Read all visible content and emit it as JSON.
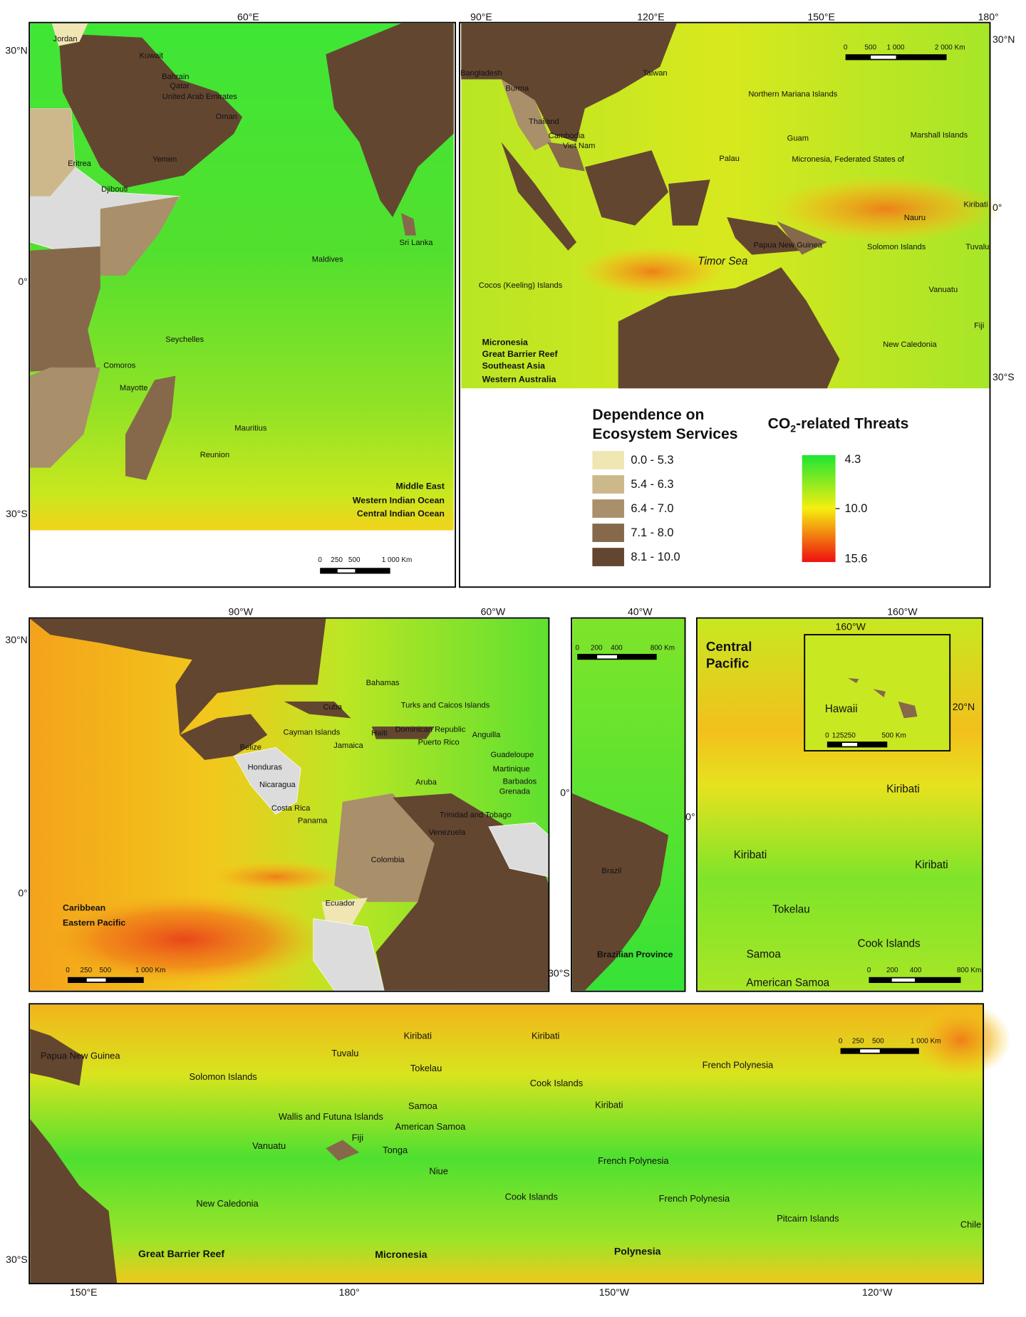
{
  "panels": [
    {
      "axis_labels": [
        "60°E",
        "30°N",
        "0°",
        "30°S"
      ],
      "labels": [
        "Jordan",
        "Kuwait",
        "Bahrain",
        "Qatar",
        "United Arab Emirates",
        "Oman",
        "Eritrea",
        "Yemen",
        "Djibouti",
        "Sri Lanka",
        "Maldives",
        "Seychelles",
        "Comoros",
        "Mayotte",
        "Mauritius",
        "Reunion"
      ],
      "region_labels": [
        "Middle East",
        "Western Indian Ocean",
        "Central Indian Ocean"
      ],
      "scale_bar": [
        "0",
        "250",
        "500",
        "1 000 Km"
      ]
    },
    {
      "axis_labels": [
        "90°E",
        "120°E",
        "150°E",
        "180°",
        "30°N",
        "0°",
        "30°S"
      ],
      "labels": [
        "Bangladesh",
        "Burma",
        "Taiwan",
        "Northern Mariana Islands",
        "Thailand",
        "Cambodia",
        "Viet Nam",
        "Guam",
        "Marshall Islands",
        "Palau",
        "Micronesia, Federated States of",
        "Kiribati",
        "Nauru",
        "Papua New Guinea",
        "Solomon Islands",
        "Tuvalu",
        "Timor Sea",
        "Cocos (Keeling) Islands",
        "Vanuatu",
        "Fiji",
        "New Caledonia"
      ],
      "region_labels": [
        "Micronesia",
        "Great Barrier Reef",
        "Southeast Asia",
        "Western Australia"
      ],
      "scale_bar": [
        "0",
        "500",
        "1 000",
        "2 000 Km"
      ]
    },
    {
      "axis_labels": [
        "90°W",
        "60°W",
        "30°N",
        "0°"
      ],
      "labels": [
        "Bahamas",
        "Turks and Caicos Islands",
        "Cuba",
        "Cayman Islands",
        "Haiti",
        "Dominican Republic",
        "Anguilla",
        "Puerto Rico",
        "Jamaica",
        "Belize",
        "Guadeloupe",
        "Martinique",
        "Honduras",
        "Barbados",
        "Grenada",
        "Nicaragua",
        "Aruba",
        "Costa Rica",
        "Trinidad and Tobago",
        "Panama",
        "Venezuela",
        "Colombia",
        "Ecuador"
      ],
      "region_labels": [
        "Caribbean",
        "Eastern Pacific"
      ],
      "scale_bar": [
        "0",
        "250",
        "500",
        "1 000 Km"
      ]
    },
    {
      "axis_labels": [
        "40°W",
        "0°",
        "30°S"
      ],
      "labels": [
        "Brazil"
      ],
      "region_labels": [
        "Brazilian Province"
      ],
      "scale_bar": [
        "0",
        "200",
        "400",
        "800 Km"
      ]
    },
    {
      "axis_labels": [
        "160°W",
        "0°"
      ],
      "labels": [
        "Kiribati",
        "Kiribati",
        "Kiribati",
        "Tokelau",
        "Cook Islands",
        "Samoa",
        "American Samoa"
      ],
      "region_labels": [
        "Central",
        "Pacific"
      ],
      "scale_bar": [
        "0",
        "200",
        "400",
        "800 Km"
      ]
    },
    {
      "axis_labels": [
        "160°W",
        "20°N"
      ],
      "labels": [
        "Hawaii"
      ],
      "region_labels": [],
      "scale_bar": [
        "0",
        "125",
        "250",
        "500 Km"
      ]
    },
    {
      "axis_labels": [
        "150°E",
        "180°",
        "150°W",
        "120°W",
        "30°S"
      ],
      "labels": [
        "Papua New Guinea",
        "Kiribati",
        "Kiribati",
        "Tuvalu",
        "Tokelau",
        "French Polynesia",
        "Solomon Islands",
        "Cook Islands",
        "Samoa",
        "Kiribati",
        "Wallis and Futuna Islands",
        "American Samoa",
        "Fiji",
        "Vanuatu",
        "Tonga",
        "French Polynesia",
        "Niue",
        "New Caledonia",
        "Cook Islands",
        "French Polynesia",
        "Pitcairn Islands",
        "Chile"
      ],
      "region_labels": [
        "Great Barrier Reef",
        "Micronesia",
        "Polynesia"
      ],
      "scale_bar": [
        "0",
        "250",
        "500",
        "1 000 Km"
      ]
    }
  ],
  "legend": {
    "dependence_title": [
      "Dependence on",
      "Ecosystem Services"
    ],
    "dependence_classes": [
      "0.0 - 5.3",
      "5.4 - 6.3",
      "6.4 - 7.0",
      "7.1 - 8.0",
      "8.1 - 10.0"
    ],
    "threats_title": {
      "main": "CO",
      "sub": "2",
      "rest": "-related Threats"
    },
    "threats_ticks": [
      "4.3",
      "10.0",
      "15.6"
    ]
  }
}
